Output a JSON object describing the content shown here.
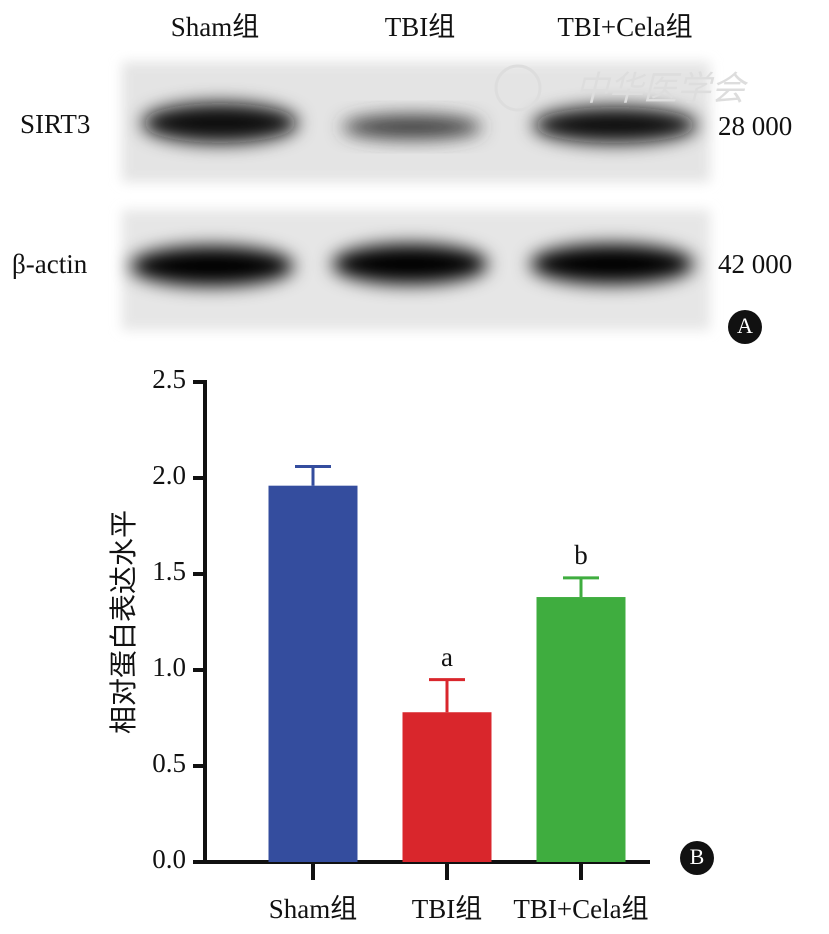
{
  "blot": {
    "lanes": [
      "Sham组",
      "TBI组",
      "TBI+Cela组"
    ],
    "rows": [
      {
        "label": "SIRT3",
        "mw": "28 000"
      },
      {
        "label": "β-actin",
        "mw": "42 000"
      }
    ],
    "watermark": "中华医学会"
  },
  "panel_labels": [
    "A",
    "B"
  ],
  "chart_data": {
    "type": "bar",
    "ylabel": "相对蛋白表达水平",
    "categories": [
      "Sham组",
      "TBI组",
      "TBI+Cela组"
    ],
    "values": [
      1.96,
      0.78,
      1.38
    ],
    "errors": [
      0.1,
      0.17,
      0.1
    ],
    "significance": [
      null,
      "a",
      "b"
    ],
    "colors": [
      "#344d9e",
      "#d9262c",
      "#3fad3f"
    ],
    "ylim": [
      0,
      2.5
    ],
    "yticks": [
      {
        "value": 0,
        "label": "0.0"
      },
      0.5,
      {
        "value": 1,
        "label": "1.0"
      },
      1.5,
      {
        "value": 2,
        "label": "2.0"
      },
      2.5
    ]
  }
}
